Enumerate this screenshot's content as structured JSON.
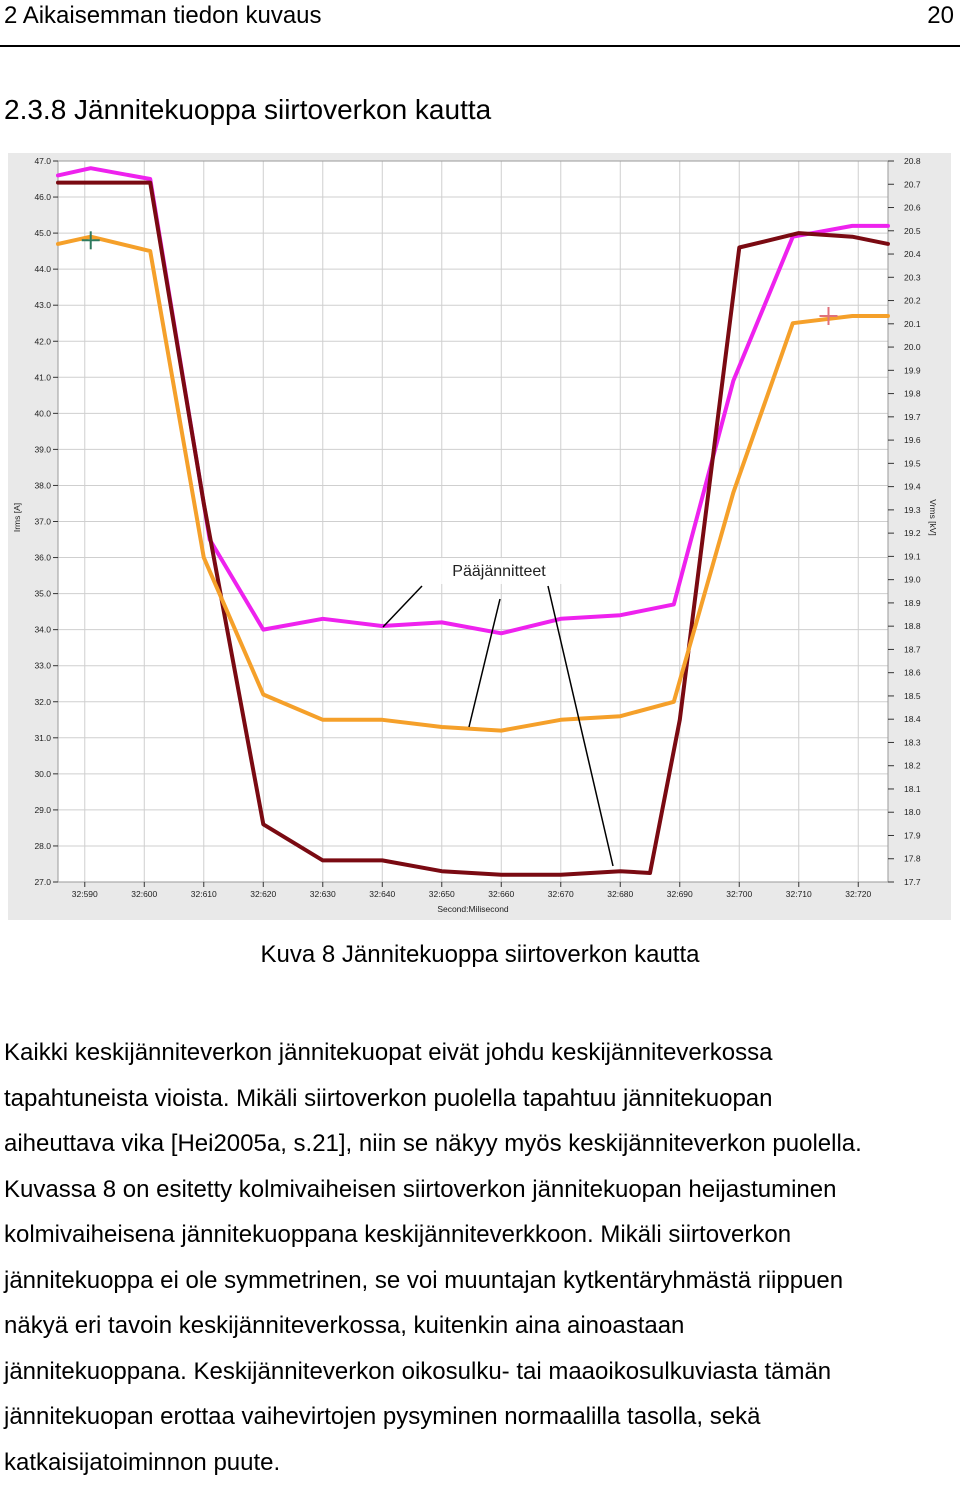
{
  "header": {
    "chapter": "2 Aikaisemman tiedon kuvaus",
    "page_number": "20"
  },
  "section_heading": "2.3.8 Jännitekuoppa siirtoverkon kautta",
  "figure": {
    "annotation": "Pääjännitteet",
    "caption": "Kuva 8 Jännitekuoppa siirtoverkon kautta"
  },
  "chart_data": {
    "type": "line",
    "xlabel": "Second:Milisecond",
    "ylabel_left": "Irms [A]",
    "ylabel_right": "Vrms [kV]",
    "x_ticks": [
      "32:590",
      "32:600",
      "32:610",
      "32:620",
      "32:630",
      "32:640",
      "32:650",
      "32:660",
      "32:670",
      "32:680",
      "32:690",
      "32:700",
      "32:710",
      "32:720"
    ],
    "y_left_ticks": [
      "47.0",
      "46.0",
      "45.0",
      "44.0",
      "43.0",
      "42.0",
      "41.0",
      "40.0",
      "39.0",
      "38.0",
      "37.0",
      "36.0",
      "35.0",
      "34.0",
      "33.0",
      "32.0",
      "31.0",
      "30.0",
      "29.0",
      "28.0",
      "27.0"
    ],
    "y_right_ticks": [
      "20.8",
      "20.7",
      "20.6",
      "20.5",
      "20.4",
      "20.3",
      "20.2",
      "20.1",
      "20.0",
      "19.9",
      "19.8",
      "19.7",
      "19.6",
      "19.5",
      "19.4",
      "19.3",
      "19.2",
      "19.1",
      "19.0",
      "18.9",
      "18.8",
      "18.7",
      "18.6",
      "18.5",
      "18.4",
      "18.3",
      "18.2",
      "18.1",
      "18.0",
      "17.9",
      "17.8",
      "17.7"
    ],
    "y_left_range": [
      27.0,
      47.0
    ],
    "y_right_range": [
      17.7,
      20.8
    ],
    "grid": true,
    "colors": {
      "magenta": "#ee22ee",
      "orange": "#f5a02a",
      "darkred": "#7a0a12"
    },
    "series": [
      {
        "color": "#ee22ee",
        "x": [
          32585.5,
          32591,
          32601,
          32611,
          32620,
          32630,
          32640,
          32650,
          32660,
          32670,
          32680,
          32689,
          32699,
          32709,
          32719,
          32725
        ],
        "y": [
          46.6,
          46.8,
          46.5,
          36.5,
          34.0,
          34.3,
          34.1,
          34.2,
          33.9,
          34.3,
          34.4,
          34.7,
          40.9,
          44.9,
          45.2,
          45.2
        ]
      },
      {
        "color": "#7a0a12",
        "x": [
          32585.5,
          32591,
          32601,
          32610,
          32620,
          32630,
          32640,
          32650,
          32660,
          32670,
          32680,
          32685,
          32690,
          32700,
          32710,
          32719,
          32725
        ],
        "y": [
          46.4,
          46.4,
          46.4,
          37.5,
          28.6,
          27.6,
          27.6,
          27.3,
          27.2,
          27.2,
          27.3,
          27.25,
          31.5,
          44.6,
          45.0,
          44.9,
          44.7
        ]
      },
      {
        "color": "#f5a02a",
        "x": [
          32585.5,
          32591,
          32601,
          32610,
          32620,
          32630,
          32640,
          32650,
          32660,
          32670,
          32680,
          32689,
          32699,
          32709,
          32719,
          32725
        ],
        "y": [
          44.7,
          44.9,
          44.5,
          36.0,
          32.2,
          31.5,
          31.5,
          31.3,
          31.2,
          31.5,
          31.6,
          32.0,
          37.8,
          42.5,
          42.7,
          42.7
        ]
      }
    ],
    "markers": [
      {
        "x": 32591,
        "y": 44.8,
        "color": "#2e7a5e"
      },
      {
        "x": 32715,
        "y": 42.7,
        "color": "#e0707a"
      }
    ]
  },
  "body_lines": [
    "Kaikki keskijänniteverkon jännitekuopat eivät johdu keskijänniteverkossa",
    "tapahtuneista vioista. Mikäli siirtoverkon puolella tapahtuu jännitekuopan",
    "aiheuttava vika [Hei2005a, s.21], niin se näkyy myös keskijänniteverkon puolella.",
    "Kuvassa 8 on esitetty kolmivaiheisen siirtoverkon jännitekuopan heijastuminen",
    "kolmivaiheisena jännitekuoppana keskijänniteverkkoon. Mikäli siirtoverkon",
    "jännitekuoppa ei ole symmetrinen, se voi muuntajan kytkentäryhmästä riippuen",
    "näkyä eri tavoin keskijänniteverkossa, kuitenkin aina ainoastaan",
    "jännitekuoppana. Keskijänniteverkon oikosulku- tai maaoikosulkuviasta tämän",
    "jännitekuopan erottaa vaihevirtojen pysyminen normaalilla tasolla, sekä",
    "katkaisijatoiminnon puute."
  ]
}
